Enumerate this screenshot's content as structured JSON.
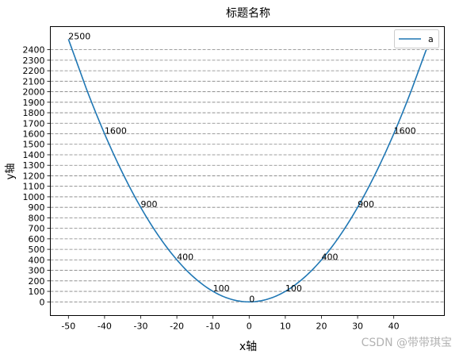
{
  "chart_data": {
    "type": "line",
    "title": "标题名称",
    "xlabel": "x轴",
    "ylabel": "y轴",
    "xlim": [
      -55,
      54
    ],
    "ylim": [
      -130,
      2620
    ],
    "x_ticks": [
      -50,
      -40,
      -30,
      -20,
      -10,
      0,
      10,
      20,
      30,
      40
    ],
    "y_ticks": [
      0,
      100,
      200,
      300,
      400,
      500,
      600,
      700,
      800,
      900,
      1000,
      1100,
      1200,
      1300,
      1400,
      1500,
      1600,
      1700,
      1800,
      1900,
      2000,
      2100,
      2200,
      2300,
      2400
    ],
    "grid": "horizontal dashed",
    "legend_position": "top-right",
    "series": [
      {
        "name": "a",
        "color": "#1f77b4",
        "x": [
          -50,
          -45,
          -40,
          -35,
          -30,
          -25,
          -20,
          -15,
          -10,
          -5,
          0,
          5,
          10,
          15,
          20,
          25,
          30,
          35,
          40,
          45,
          49
        ],
        "y": [
          2500,
          2025,
          1600,
          1225,
          900,
          625,
          400,
          225,
          100,
          25,
          0,
          25,
          100,
          225,
          400,
          625,
          900,
          1225,
          1600,
          2025,
          2401
        ]
      }
    ],
    "annotations": [
      {
        "x": -50,
        "y": 2500,
        "text": "2500"
      },
      {
        "x": -40,
        "y": 1600,
        "text": "1600"
      },
      {
        "x": -30,
        "y": 900,
        "text": "900"
      },
      {
        "x": -20,
        "y": 400,
        "text": "400"
      },
      {
        "x": -10,
        "y": 100,
        "text": "100"
      },
      {
        "x": 0,
        "y": 0,
        "text": "0"
      },
      {
        "x": 10,
        "y": 100,
        "text": "100"
      },
      {
        "x": 20,
        "y": 400,
        "text": "400"
      },
      {
        "x": 30,
        "y": 900,
        "text": "900"
      },
      {
        "x": 40,
        "y": 1600,
        "text": "1600"
      }
    ]
  },
  "watermark": "CSDN @带带琪宝"
}
